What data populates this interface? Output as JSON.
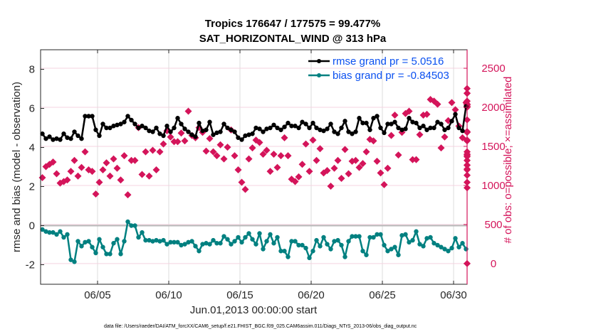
{
  "chart_data": {
    "type": "line",
    "title": "Tropics 176647 / 177575 = 99.477%",
    "subtitle": "SAT_HORIZONTAL_WIND @ 313 hPa",
    "xlabel": "Jun.01,2013 00:00:00 start",
    "ylabel": "rmse and bias (model - observation)",
    "ylabel_right": "# of obs: o=possible; ×=assimilated",
    "footnote": "data file: /Users/raeder/DAI/ATM_forcXX/CAM6_setup/f.e21.FHIST_BGC.f09_025.CAM6assim.011/Diags_NTrS_2013-06/obs_diag_output.nc",
    "xlim_days": [
      1.0,
      30.95
    ],
    "ylim": [
      -3,
      9
    ],
    "ylim_right": [
      -265,
      2737
    ],
    "x_ticks": [
      {
        "day": 5,
        "label": "06/05"
      },
      {
        "day": 10,
        "label": "06/10"
      },
      {
        "day": 15,
        "label": "06/15"
      },
      {
        "day": 20,
        "label": "06/20"
      },
      {
        "day": 25,
        "label": "06/25"
      },
      {
        "day": 30,
        "label": "06/30"
      }
    ],
    "y_ticks": [
      -2,
      0,
      2,
      4,
      6,
      8
    ],
    "y_ticks_right": [
      0,
      500,
      1000,
      1500,
      2000,
      2500
    ],
    "grid": true,
    "zero_line": 0,
    "legend": {
      "placement": "top-right",
      "entries": [
        {
          "label": "rmse grand pr = 5.0516",
          "color": "#000000"
        },
        {
          "label": "bias grand pr = -0.84503",
          "color": "#008080"
        }
      ]
    },
    "time_step_days": 0.25,
    "time_start_day": 1.0,
    "series": [
      {
        "name": "rmse",
        "axis": "left",
        "color": "#000000",
        "values": [
          4.7,
          4.45,
          4.55,
          4.4,
          4.45,
          4.4,
          4.7,
          4.5,
          4.45,
          4.8,
          4.6,
          4.45,
          5.6,
          5.6,
          5.6,
          4.9,
          4.6,
          5.2,
          5.0,
          5.0,
          5.1,
          5.15,
          5.2,
          5.3,
          5.6,
          5.4,
          5.2,
          5.0,
          5.1,
          5.0,
          4.85,
          4.8,
          5.0,
          4.7,
          4.6,
          5.1,
          4.8,
          5.0,
          5.5,
          5.2,
          4.95,
          4.8,
          4.65,
          4.55,
          5.25,
          4.85,
          4.9,
          5.3,
          4.65,
          4.75,
          4.8,
          5.2,
          5.0,
          4.9,
          4.8,
          4.5,
          4.4,
          4.6,
          4.65,
          4.7,
          5.0,
          4.95,
          4.8,
          4.95,
          5.0,
          5.15,
          5.0,
          4.9,
          5.05,
          5.25,
          5.1,
          5.1,
          5.0,
          5.3,
          5.2,
          5.0,
          5.25,
          5.0,
          4.9,
          4.85,
          4.95,
          5.2,
          4.8,
          4.7,
          5.0,
          5.35,
          4.8,
          4.7,
          4.8,
          5.5,
          5.25,
          5.25,
          4.9,
          5.5,
          5.6,
          5.0,
          4.75,
          5.2,
          5.2,
          5.3,
          5.0,
          4.9,
          4.95,
          5.5,
          5.3,
          5.25,
          5.0,
          5.1,
          4.9,
          5.0,
          5.0,
          5.3,
          5.2,
          4.9,
          5.0,
          5.35,
          5.7,
          5.0,
          4.85,
          6.1,
          5.0,
          4.6,
          4.75,
          4.8,
          5.1,
          4.75,
          4.95,
          5.15,
          4.9,
          4.65,
          4.7,
          4.95,
          4.75,
          4.9,
          4.9,
          5.15,
          5.55,
          5.9,
          5.9,
          5.3,
          5.0,
          4.9,
          4.7,
          4.9,
          4.9,
          4.9,
          4.6,
          4.9,
          5.0,
          4.8,
          4.7,
          4.55
        ]
      },
      {
        "name": "bias",
        "axis": "left",
        "color": "#008080",
        "values": [
          -0.2,
          -0.3,
          -0.35,
          -0.35,
          -0.45,
          -0.3,
          -0.6,
          -0.45,
          -1.75,
          -1.85,
          -0.8,
          -1.05,
          -0.85,
          -0.8,
          -1.1,
          -1.4,
          -0.7,
          -1.1,
          -1.45,
          -1.45,
          -0.9,
          -0.7,
          -1.45,
          -0.8,
          0.2,
          0.0,
          0.0,
          -0.6,
          -0.35,
          -0.75,
          -0.75,
          -0.8,
          -0.75,
          -0.8,
          -0.75,
          -0.95,
          -0.85,
          -0.85,
          -0.85,
          -1.0,
          -0.95,
          -0.85,
          -0.8,
          -1.05,
          -1.3,
          -0.95,
          -0.9,
          -0.95,
          -0.75,
          -0.9,
          -0.9,
          -0.55,
          -0.7,
          -0.95,
          -0.8,
          -0.6,
          -0.85,
          -0.6,
          -0.4,
          -0.7,
          -0.95,
          -0.4,
          -1.2,
          -0.8,
          -0.45,
          -0.9,
          -0.6,
          -1.3,
          -1.3,
          -1.6,
          -0.8,
          -0.8,
          -1.0,
          -1.0,
          -1.15,
          -1.65,
          -1.3,
          -0.75,
          -1.05,
          -0.6,
          -0.95,
          -1.2,
          -0.8,
          -0.75,
          -1.0,
          -1.6,
          -0.8,
          -0.55,
          -0.55,
          -0.55,
          -1.3,
          -1.5,
          -0.6,
          -0.6,
          -0.45,
          -0.45,
          -1.0,
          -1.3,
          -1.2,
          -1.1,
          -1.5,
          -0.5,
          -0.45,
          -0.85,
          -0.75,
          -0.3,
          -0.95,
          -1.05,
          -0.65,
          -0.6,
          -0.9,
          -1.0,
          -1.1,
          -1.2,
          -1.3,
          -1.15,
          -0.65,
          -1.1,
          -0.9,
          -1.2,
          -1.05,
          -0.5,
          -0.9,
          -1.05,
          -1.25,
          -1.2,
          -0.45,
          -1.05,
          -1.35,
          -0.95,
          -0.7,
          -0.55
        ]
      },
      {
        "name": "# of obs possible",
        "axis": "right",
        "color": "#d4145a",
        "values": [
          1100,
          1240,
          1270,
          1300,
          1150,
          1030,
          1050,
          1070,
          1180,
          1320,
          1120,
          1230,
          1430,
          1200,
          1180,
          890,
          1040,
          1200,
          1290,
          1120,
          1340,
          1220,
          1070,
          1380,
          880,
          1320,
          1320,
          1740,
          1140,
          1430,
          1120,
          1450,
          1200,
          1430,
          1530,
          1700,
          1620,
          1560,
          1560,
          1670,
          1570,
          1950,
          1640,
          1610,
          1740,
          1680,
          1440,
          1600,
          1430,
          1380,
          1520,
          1340,
          1490,
          1710,
          1380,
          1200,
          1040,
          950,
          1340,
          1480,
          1580,
          1550,
          1400,
          1450,
          1180,
          1400,
          1230,
          1380,
          1610,
          1380,
          1080,
          1050,
          1110,
          1270,
          1530,
          1180,
          1580,
          1320,
          1470,
          1160,
          1190,
          990,
          1220,
          1320,
          1090,
          1460,
          1150,
          1310,
          1320,
          1230,
          1280,
          1430,
          1590,
          1570,
          1310,
          1160,
          1010,
          1220,
          1640,
          1900,
          1390,
          1680,
          1920,
          1950,
          1330,
          1330,
          1650,
          1900,
          1910,
          2100,
          2080,
          2040,
          1480,
          1620,
          1830,
          2060,
          1970,
          1760,
          1610,
          2060,
          2040,
          2180,
          1570,
          2180,
          2080,
          2010,
          2040,
          2000,
          2010,
          1680,
          1690,
          1840,
          1390,
          1320,
          1200,
          2030,
          2240,
          1130,
          1210,
          970,
          1400,
          1370,
          1580,
          1580,
          1430,
          1370,
          1260,
          1260,
          1040,
          2010,
          0
        ]
      }
    ]
  }
}
